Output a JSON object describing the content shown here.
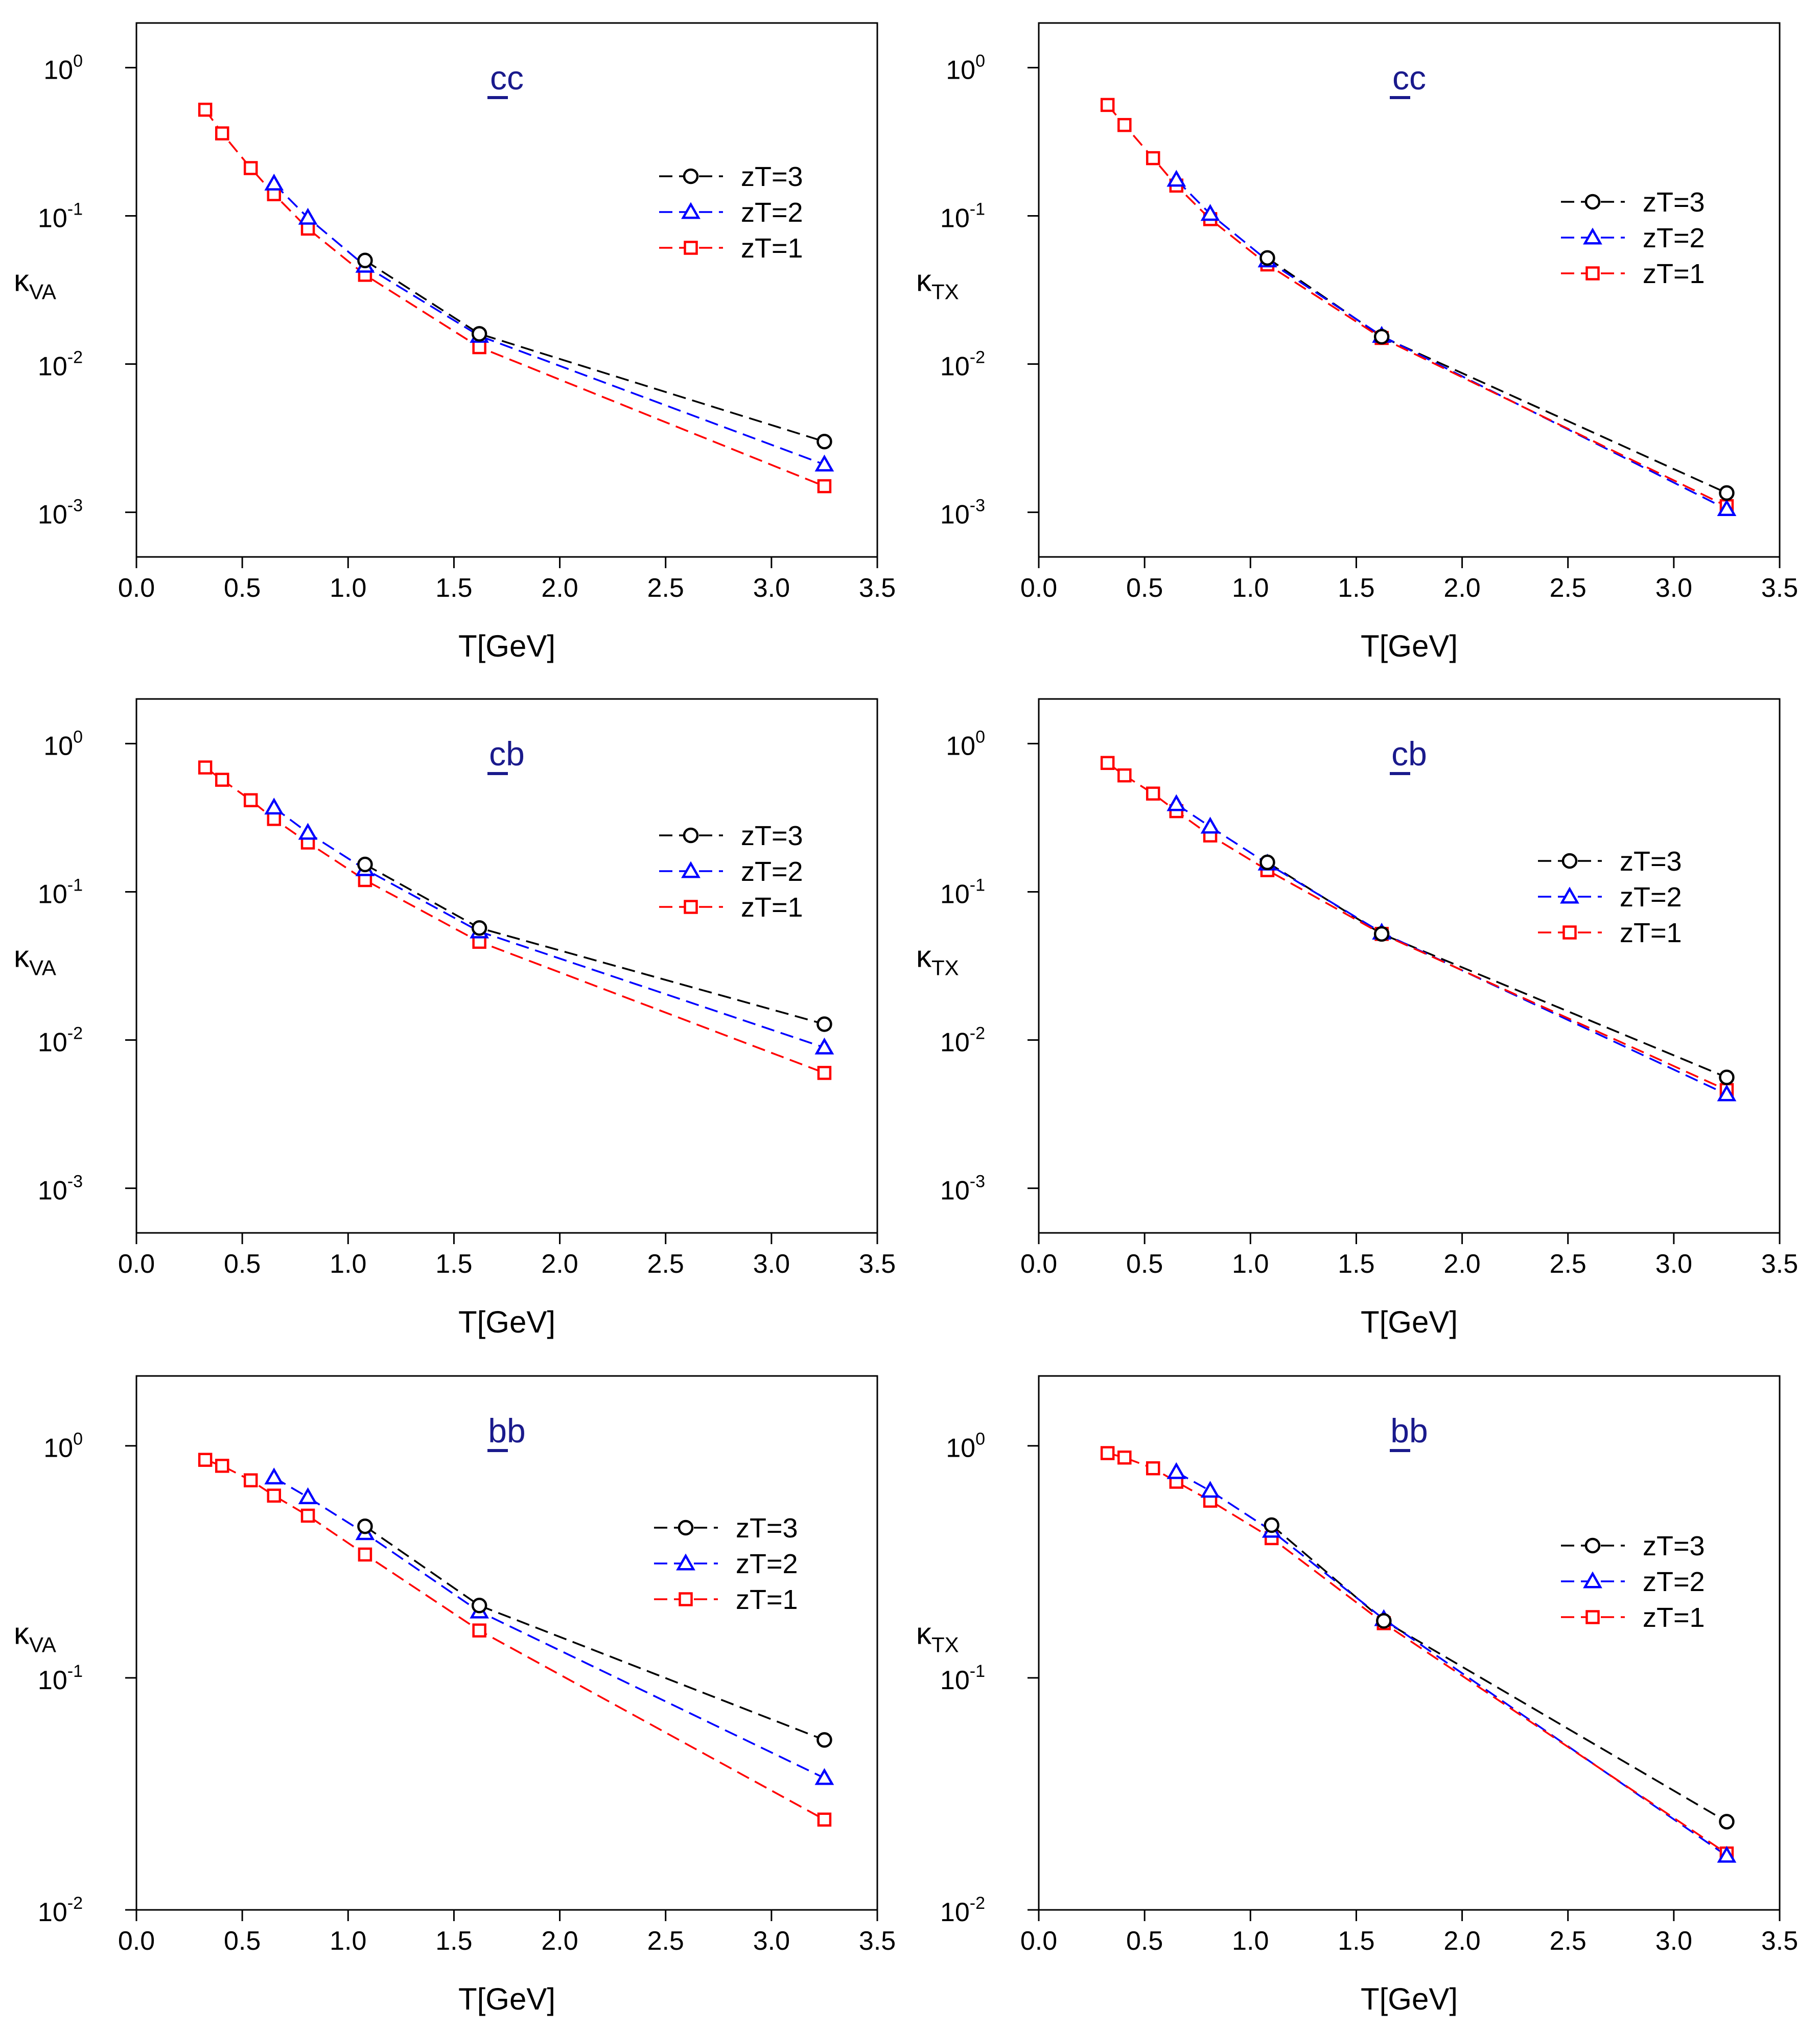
{
  "chart_data": [
    {
      "id": "va-cc",
      "type": "line",
      "title": "cc",
      "title_underlined_part": "c",
      "ylabel": "κ",
      "ylabel_sub": "VA",
      "xlabel": "T[GeV]",
      "yscale": "log",
      "ylim": [
        0.0005,
        2
      ],
      "yticks": [
        0.001,
        0.01,
        0.1,
        1
      ],
      "ytick_labels": [
        {
          "base": "10",
          "exp": "-3"
        },
        {
          "base": "10",
          "exp": "-2"
        },
        {
          "base": "10",
          "exp": "-1"
        },
        {
          "base": "10",
          "exp": "0"
        }
      ],
      "xlim": [
        0,
        3.5
      ],
      "xticks": [
        0,
        0.5,
        1,
        1.5,
        2,
        2.5,
        3,
        3.5
      ],
      "xtick_labels": [
        "0.0",
        "0.5",
        "1.0",
        "1.5",
        "2.0",
        "2.5",
        "3.0",
        "3.5"
      ],
      "legend_loc": "upper-right",
      "series": [
        {
          "name": "zT=3",
          "color": "#000000",
          "marker": "circle",
          "x": [
            1.08,
            1.62,
            3.25
          ],
          "y": [
            0.05,
            0.016,
            0.003
          ]
        },
        {
          "name": "zT=2",
          "color": "#0000ff",
          "marker": "triangle",
          "x": [
            0.65,
            0.81,
            1.08,
            1.62,
            3.25
          ],
          "y": [
            0.165,
            0.097,
            0.046,
            0.0155,
            0.0021
          ]
        },
        {
          "name": "zT=1",
          "color": "#ff0000",
          "marker": "square",
          "x": [
            0.325,
            0.405,
            0.54,
            0.65,
            0.81,
            1.08,
            1.62,
            3.25
          ],
          "y": [
            0.52,
            0.36,
            0.21,
            0.14,
            0.082,
            0.04,
            0.013,
            0.0015
          ]
        }
      ]
    },
    {
      "id": "tx-cc",
      "type": "line",
      "title": "cc",
      "title_underlined_part": "c",
      "ylabel": "κ",
      "ylabel_sub": "TX",
      "xlabel": "T[GeV]",
      "yscale": "log",
      "ylim": [
        0.0005,
        2
      ],
      "yticks": [
        0.001,
        0.01,
        0.1,
        1
      ],
      "ytick_labels": [
        {
          "base": "10",
          "exp": "-3"
        },
        {
          "base": "10",
          "exp": "-2"
        },
        {
          "base": "10",
          "exp": "-1"
        },
        {
          "base": "10",
          "exp": "0"
        }
      ],
      "xlim": [
        0,
        3.5
      ],
      "xticks": [
        0,
        0.5,
        1,
        1.5,
        2,
        2.5,
        3,
        3.5
      ],
      "xtick_labels": [
        "0.0",
        "0.5",
        "1.0",
        "1.5",
        "2.0",
        "2.5",
        "3.0",
        "3.5"
      ],
      "legend_loc": "upper-right",
      "series": [
        {
          "name": "zT=3",
          "color": "#000000",
          "marker": "circle",
          "x": [
            1.08,
            1.62,
            3.25
          ],
          "y": [
            0.052,
            0.0153,
            0.00135
          ]
        },
        {
          "name": "zT=2",
          "color": "#0000ff",
          "marker": "triangle",
          "x": [
            0.65,
            0.81,
            1.08,
            1.62,
            3.25
          ],
          "y": [
            0.175,
            0.103,
            0.05,
            0.0155,
            0.00105
          ]
        },
        {
          "name": "zT=1",
          "color": "#ff0000",
          "marker": "square",
          "x": [
            0.325,
            0.405,
            0.54,
            0.65,
            0.81,
            1.08,
            1.62,
            3.25
          ],
          "y": [
            0.56,
            0.41,
            0.245,
            0.16,
            0.095,
            0.047,
            0.015,
            0.0011
          ]
        }
      ]
    },
    {
      "id": "va-cb",
      "type": "line",
      "title": "cb",
      "title_underlined_part": "c",
      "ylabel": "κ",
      "ylabel_sub": "VA",
      "xlabel": "T[GeV]",
      "yscale": "log",
      "ylim": [
        0.0005,
        2
      ],
      "yticks": [
        0.001,
        0.01,
        0.1,
        1
      ],
      "ytick_labels": [
        {
          "base": "10",
          "exp": "-3"
        },
        {
          "base": "10",
          "exp": "-2"
        },
        {
          "base": "10",
          "exp": "-1"
        },
        {
          "base": "10",
          "exp": "0"
        }
      ],
      "xlim": [
        0,
        3.5
      ],
      "xticks": [
        0,
        0.5,
        1,
        1.5,
        2,
        2.5,
        3,
        3.5
      ],
      "xtick_labels": [
        "0.0",
        "0.5",
        "1.0",
        "1.5",
        "2.0",
        "2.5",
        "3.0",
        "3.5"
      ],
      "legend_loc": "upper-right",
      "series": [
        {
          "name": "zT=3",
          "color": "#000000",
          "marker": "circle",
          "x": [
            1.08,
            1.62,
            3.25
          ],
          "y": [
            0.153,
            0.057,
            0.0128
          ]
        },
        {
          "name": "zT=2",
          "color": "#0000ff",
          "marker": "triangle",
          "x": [
            0.65,
            0.81,
            1.08,
            1.62,
            3.25
          ],
          "y": [
            0.37,
            0.25,
            0.142,
            0.054,
            0.0089
          ]
        },
        {
          "name": "zT=1",
          "color": "#ff0000",
          "marker": "square",
          "x": [
            0.325,
            0.405,
            0.54,
            0.65,
            0.81,
            1.08,
            1.62,
            3.25
          ],
          "y": [
            0.69,
            0.57,
            0.415,
            0.31,
            0.215,
            0.12,
            0.046,
            0.006
          ]
        }
      ]
    },
    {
      "id": "tx-cb",
      "type": "line",
      "title": "cb",
      "title_underlined_part": "c",
      "ylabel": "κ",
      "ylabel_sub": "TX",
      "xlabel": "T[GeV]",
      "yscale": "log",
      "ylim": [
        0.0005,
        2
      ],
      "yticks": [
        0.001,
        0.01,
        0.1,
        1
      ],
      "ytick_labels": [
        {
          "base": "10",
          "exp": "-3"
        },
        {
          "base": "10",
          "exp": "-2"
        },
        {
          "base": "10",
          "exp": "-1"
        },
        {
          "base": "10",
          "exp": "0"
        }
      ],
      "xlim": [
        0,
        3.5
      ],
      "xticks": [
        0,
        0.5,
        1,
        1.5,
        2,
        2.5,
        3,
        3.5
      ],
      "xtick_labels": [
        "0.0",
        "0.5",
        "1.0",
        "1.5",
        "2.0",
        "2.5",
        "3.0",
        "3.5"
      ],
      "legend_loc": "right",
      "series": [
        {
          "name": "zT=3",
          "color": "#000000",
          "marker": "circle",
          "x": [
            1.08,
            1.62,
            3.25
          ],
          "y": [
            0.158,
            0.052,
            0.0056
          ]
        },
        {
          "name": "zT=2",
          "color": "#0000ff",
          "marker": "triangle",
          "x": [
            0.65,
            0.81,
            1.08,
            1.62,
            3.25
          ],
          "y": [
            0.39,
            0.275,
            0.155,
            0.053,
            0.0043
          ]
        },
        {
          "name": "zT=1",
          "color": "#ff0000",
          "marker": "square",
          "x": [
            0.325,
            0.405,
            0.54,
            0.65,
            0.81,
            1.08,
            1.62,
            3.25
          ],
          "y": [
            0.74,
            0.61,
            0.46,
            0.35,
            0.24,
            0.14,
            0.052,
            0.0046
          ]
        }
      ]
    },
    {
      "id": "va-bb",
      "type": "line",
      "title": "bb",
      "title_underlined_part": "b",
      "ylabel": "κ",
      "ylabel_sub": "VA",
      "xlabel": "T[GeV]",
      "yscale": "log",
      "ylim": [
        0.01,
        2
      ],
      "yticks": [
        0.01,
        0.1,
        1
      ],
      "ytick_labels": [
        {
          "base": "10",
          "exp": "-2"
        },
        {
          "base": "10",
          "exp": "-1"
        },
        {
          "base": "10",
          "exp": "0"
        }
      ],
      "xlim": [
        0,
        3.5
      ],
      "xticks": [
        0,
        0.5,
        1,
        1.5,
        2,
        2.5,
        3,
        3.5
      ],
      "xtick_labels": [
        "0.0",
        "0.5",
        "1.0",
        "1.5",
        "2.0",
        "2.5",
        "3.0",
        "3.5"
      ],
      "legend_loc": "right",
      "series": [
        {
          "name": "zT=3",
          "color": "#000000",
          "marker": "circle",
          "x": [
            1.08,
            1.62,
            3.25
          ],
          "y": [
            0.45,
            0.205,
            0.054
          ]
        },
        {
          "name": "zT=2",
          "color": "#0000ff",
          "marker": "triangle",
          "x": [
            0.65,
            0.81,
            1.08,
            1.62,
            3.25
          ],
          "y": [
            0.73,
            0.6,
            0.42,
            0.193,
            0.037
          ]
        },
        {
          "name": "zT=1",
          "color": "#ff0000",
          "marker": "square",
          "x": [
            0.325,
            0.405,
            0.54,
            0.65,
            0.81,
            1.08,
            1.62,
            3.25
          ],
          "y": [
            0.87,
            0.82,
            0.71,
            0.61,
            0.5,
            0.34,
            0.16,
            0.0245
          ]
        }
      ]
    },
    {
      "id": "tx-bb",
      "type": "line",
      "title": "bb",
      "title_underlined_part": "b",
      "ylabel": "κ",
      "ylabel_sub": "TX",
      "xlabel": "T[GeV]",
      "yscale": "log",
      "ylim": [
        0.01,
        2
      ],
      "yticks": [
        0.01,
        0.1,
        1
      ],
      "ytick_labels": [
        {
          "base": "10",
          "exp": "-2"
        },
        {
          "base": "10",
          "exp": "-1"
        },
        {
          "base": "10",
          "exp": "0"
        }
      ],
      "xlim": [
        0,
        3.5
      ],
      "xticks": [
        0,
        0.5,
        1,
        1.5,
        2,
        2.5,
        3,
        3.5
      ],
      "xtick_labels": [
        "0.0",
        "0.5",
        "1.0",
        "1.5",
        "2.0",
        "2.5",
        "3.0",
        "3.5"
      ],
      "legend_loc": "right",
      "series": [
        {
          "name": "zT=3",
          "color": "#000000",
          "marker": "circle",
          "x": [
            1.1,
            1.63,
            3.25
          ],
          "y": [
            0.455,
            0.176,
            0.024
          ]
        },
        {
          "name": "zT=2",
          "color": "#0000ff",
          "marker": "triangle",
          "x": [
            0.65,
            0.81,
            1.1,
            1.63,
            3.25
          ],
          "y": [
            0.77,
            0.64,
            0.43,
            0.179,
            0.0171
          ]
        },
        {
          "name": "zT=1",
          "color": "#ff0000",
          "marker": "square",
          "x": [
            0.325,
            0.405,
            0.54,
            0.65,
            0.81,
            1.1,
            1.63,
            3.25
          ],
          "y": [
            0.93,
            0.89,
            0.8,
            0.7,
            0.58,
            0.4,
            0.172,
            0.0175
          ]
        }
      ]
    }
  ]
}
